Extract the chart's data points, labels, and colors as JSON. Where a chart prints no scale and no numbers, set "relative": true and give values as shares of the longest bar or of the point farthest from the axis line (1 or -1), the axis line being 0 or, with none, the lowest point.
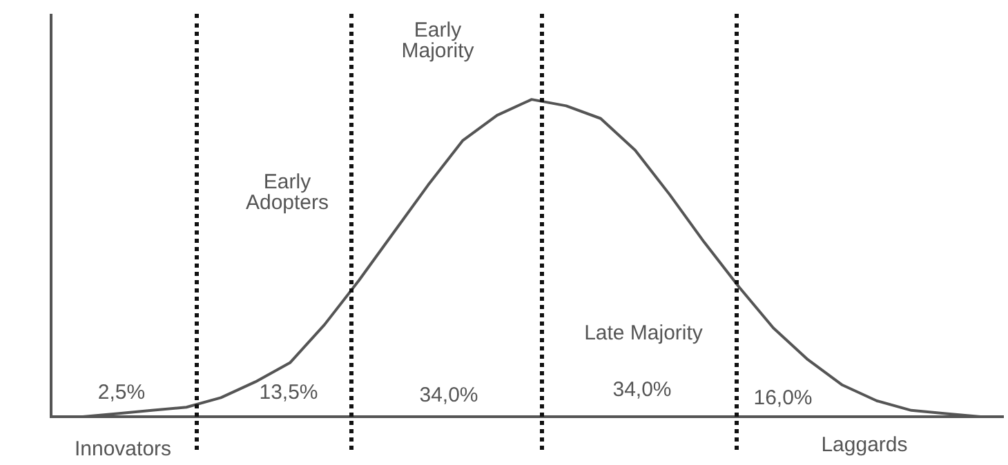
{
  "chart_data": {
    "type": "line",
    "relative": true,
    "marker": "none",
    "line_style": "solid",
    "categories": [
      null,
      null,
      null,
      null,
      null,
      null,
      null,
      null,
      null,
      null,
      null,
      null,
      null,
      null,
      null,
      null,
      null,
      null,
      null,
      null,
      null,
      null,
      null,
      null,
      null,
      null,
      null
    ],
    "series": [
      {
        "color": "#555555",
        "values": [
          0,
          0.01,
          0.02,
          0.03,
          0.06,
          0.11,
          0.17,
          0.29,
          0.43,
          0.58,
          0.73,
          0.87,
          0.95,
          1.0,
          0.98,
          0.94,
          0.84,
          0.7,
          0.55,
          0.41,
          0.28,
          0.18,
          0.1,
          0.05,
          0.02,
          0.01,
          0
        ]
      }
    ],
    "annotations": [
      "2,5%",
      "13,5%",
      "34,0%",
      "34,0%",
      "16,0%",
      "Late Majority",
      "Early\nAdopters",
      "Early\nMajority",
      "Innovators",
      "Laggards"
    ]
  }
}
